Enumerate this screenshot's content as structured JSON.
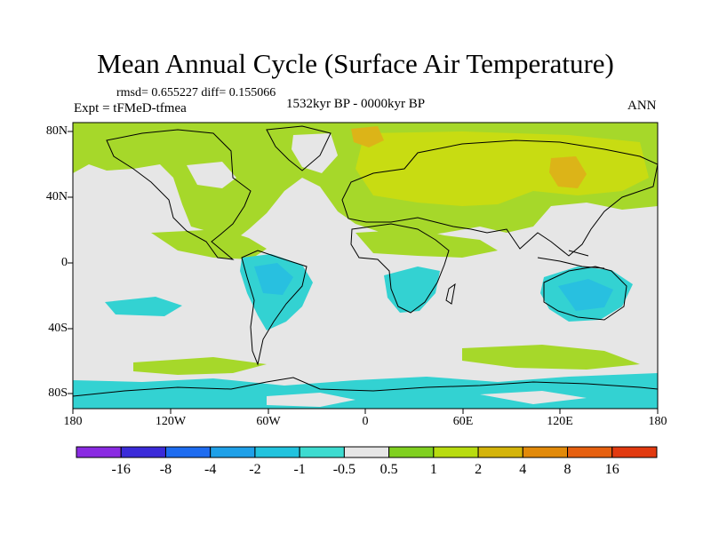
{
  "title": "Mean Annual Cycle (Surface Air Temperature)",
  "stats": "rmsd= 0.655227 diff= 0.155066",
  "experiment": "Expt = tFMeD-tfmea",
  "period": "1532kyr BP - 0000kyr BP",
  "season": "ANN",
  "lat_ticks": [
    "80N",
    "40N",
    "0",
    "40S",
    "80S"
  ],
  "lon_ticks": [
    "180",
    "120W",
    "60W",
    "0",
    "60E",
    "120E",
    "180"
  ],
  "colorbar": {
    "labels": [
      "-16",
      "-8",
      "-4",
      "-2",
      "-1",
      "-0.5",
      "0.5",
      "1",
      "2",
      "4",
      "8",
      "16"
    ],
    "colors": [
      "#8a2be2",
      "#3b2bd9",
      "#1e6cf0",
      "#1fa0e8",
      "#22c3de",
      "#3ddbd0",
      "#e6e6e6",
      "#80d020",
      "#b8dc10",
      "#d4b40a",
      "#e28a0a",
      "#e66010",
      "#e23a10"
    ]
  },
  "colors": {
    "ocean_neutral": "#e6e6e6",
    "cool": "#33d2d2",
    "cool_strong": "#28c0e0",
    "warm": "#a6d82a",
    "warm_mid": "#c8dc12",
    "warm_strong": "#dcb418"
  }
}
